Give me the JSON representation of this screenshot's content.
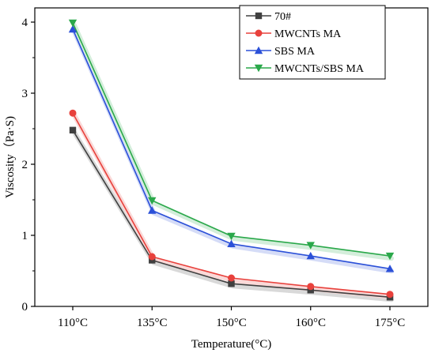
{
  "chart_data": {
    "type": "line",
    "categories": [
      "110°C",
      "135°C",
      "150°C",
      "160°C",
      "175°C"
    ],
    "xlabel": "Temperature(°C)",
    "ylabel": "Viscosity（Pa·S)",
    "ylim": [
      0,
      4.2
    ],
    "yticks": [
      "0",
      "1",
      "2",
      "3",
      "4"
    ],
    "grid": false,
    "legend_position": "top-right",
    "series": [
      {
        "name": "70#",
        "color": "#404040",
        "marker": "square",
        "values": [
          2.48,
          0.65,
          0.32,
          0.23,
          0.13
        ]
      },
      {
        "name": "MWCNTs MA",
        "color": "#e8413c",
        "marker": "circle",
        "values": [
          2.72,
          0.7,
          0.4,
          0.28,
          0.17
        ]
      },
      {
        "name": "SBS MA",
        "color": "#2b50d8",
        "marker": "triangle-up",
        "values": [
          3.9,
          1.35,
          0.88,
          0.71,
          0.53
        ]
      },
      {
        "name": "MWCNTs/SBS MA",
        "color": "#2aa84a",
        "marker": "triangle-down",
        "values": [
          3.99,
          1.49,
          0.99,
          0.86,
          0.71
        ]
      }
    ]
  }
}
